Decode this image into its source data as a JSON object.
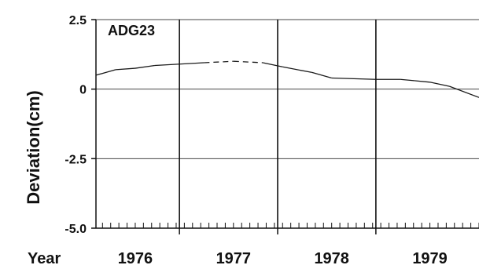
{
  "chart_data": {
    "type": "line",
    "panel_label": "ADG23",
    "ylabel": "Deviation(cm)",
    "xlabel": "Year",
    "ylim": [
      -5.0,
      2.5
    ],
    "y_ticks": [
      "2.5",
      "0",
      "-2.5",
      "-5.0"
    ],
    "y_tick_values": [
      2.5,
      0,
      -2.5,
      -5.0
    ],
    "xlim": [
      1975.6,
      1979.5
    ],
    "year_labels": [
      {
        "label": "1976",
        "value": 1976.0
      },
      {
        "label": "1977",
        "value": 1977.0
      },
      {
        "label": "1978",
        "value": 1978.0
      },
      {
        "label": "1979",
        "value": 1979.0
      }
    ],
    "year_dividers": [
      1976.45,
      1977.45,
      1978.45
    ],
    "zero_line": 0,
    "grid_lines": [
      2.5,
      -2.5
    ],
    "series": [
      {
        "x": [
          1975.6,
          1975.8,
          1976.0,
          1976.2,
          1976.45,
          1976.7,
          1977.0,
          1977.3,
          1977.5,
          1977.8,
          1978.0,
          1978.45,
          1978.7,
          1978.85,
          1979.0,
          1979.2,
          1979.5
        ],
        "y": [
          0.5,
          0.7,
          0.75,
          0.85,
          0.9,
          0.95,
          1.0,
          0.95,
          0.8,
          0.6,
          0.4,
          0.35,
          0.35,
          0.3,
          0.25,
          0.1,
          -0.3
        ],
        "dashed_segments": [
          [
            1976.7,
            1977.3
          ]
        ]
      }
    ],
    "grid": false,
    "legend": "none"
  },
  "colors": {
    "line": "#1a1a1a",
    "axis": "#111111",
    "grid": "#444444",
    "background": "#ffffff"
  }
}
